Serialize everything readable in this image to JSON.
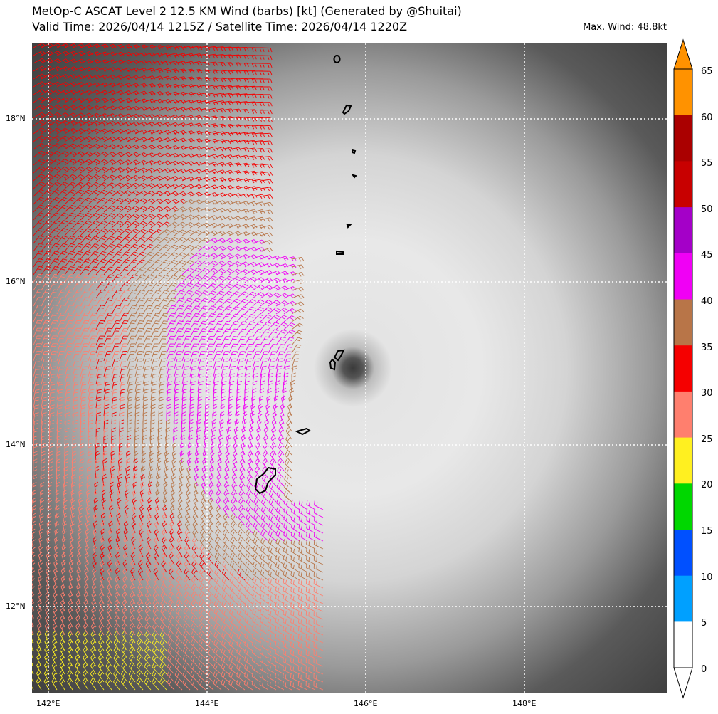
{
  "title_line1": "MetOp-C ASCAT Level 2 12.5 KM Wind (barbs) [kt] (Generated by @Shuitai)",
  "title_line2": "Valid Time: 2026/04/14 1215Z / Satellite Time: 2026/04/14 1220Z",
  "max_wind": "Max. Wind: 48.8kt",
  "lon_labels": [
    "142°E",
    "144°E",
    "146°E",
    "148°E"
  ],
  "lat_labels": [
    "18°N",
    "16°N",
    "14°N",
    "12°N"
  ],
  "colorbar": {
    "labels": [
      "65",
      "60",
      "55",
      "50",
      "45",
      "40",
      "35",
      "30",
      "25",
      "20",
      "15",
      "10",
      "5",
      "0"
    ],
    "colors": [
      "#ff9200",
      "#aa0000",
      "#c80000",
      "#a400c8",
      "#f000f5",
      "#b87548",
      "#f50000",
      "#ff7f6e",
      "#fff020",
      "#00d700",
      "#0050ff",
      "#00a0ff",
      "#ffffff"
    ]
  },
  "chart_data": {
    "type": "map",
    "lon_range": [
      141.8,
      149.8
    ],
    "lat_range": [
      10.9,
      18.9
    ],
    "barb_speed_bands_kt": [
      0,
      5,
      10,
      15,
      20,
      25,
      30,
      35,
      40,
      45,
      50,
      55,
      60,
      65
    ],
    "max_wind_kt": 48.8
  }
}
